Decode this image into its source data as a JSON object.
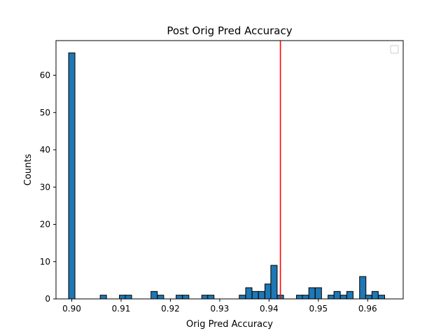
{
  "chart_data": {
    "type": "bar",
    "title": "Post Orig Pred Accuracy",
    "xlabel": "Orig Pred Accuracy",
    "ylabel": "Counts",
    "xlim": [
      0.8968,
      0.9672
    ],
    "ylim": [
      0,
      69.3
    ],
    "xticks": [
      0.9,
      0.91,
      0.92,
      0.93,
      0.94,
      0.95,
      0.96
    ],
    "xtick_labels": [
      "0.90",
      "0.91",
      "0.92",
      "0.93",
      "0.94",
      "0.95",
      "0.96"
    ],
    "yticks": [
      0,
      10,
      20,
      30,
      40,
      50,
      60
    ],
    "ytick_labels": [
      "0",
      "10",
      "20",
      "30",
      "40",
      "50",
      "60"
    ],
    "bin_width": 0.00128,
    "bins": [
      {
        "x": 0.9,
        "count": 66
      },
      {
        "x": 0.9064,
        "count": 1
      },
      {
        "x": 0.9103,
        "count": 1
      },
      {
        "x": 0.9115,
        "count": 1
      },
      {
        "x": 0.9167,
        "count": 2
      },
      {
        "x": 0.918,
        "count": 1
      },
      {
        "x": 0.9218,
        "count": 1
      },
      {
        "x": 0.9231,
        "count": 1
      },
      {
        "x": 0.927,
        "count": 1
      },
      {
        "x": 0.9282,
        "count": 1
      },
      {
        "x": 0.9346,
        "count": 1
      },
      {
        "x": 0.9359,
        "count": 3
      },
      {
        "x": 0.9372,
        "count": 2
      },
      {
        "x": 0.9385,
        "count": 2
      },
      {
        "x": 0.9398,
        "count": 4
      },
      {
        "x": 0.941,
        "count": 9
      },
      {
        "x": 0.9423,
        "count": 1
      },
      {
        "x": 0.9462,
        "count": 1
      },
      {
        "x": 0.9474,
        "count": 1
      },
      {
        "x": 0.9487,
        "count": 3
      },
      {
        "x": 0.95,
        "count": 3
      },
      {
        "x": 0.9526,
        "count": 1
      },
      {
        "x": 0.9538,
        "count": 2
      },
      {
        "x": 0.9551,
        "count": 1
      },
      {
        "x": 0.9564,
        "count": 2
      },
      {
        "x": 0.959,
        "count": 6
      },
      {
        "x": 0.9602,
        "count": 1
      },
      {
        "x": 0.9615,
        "count": 2
      },
      {
        "x": 0.9628,
        "count": 1
      }
    ],
    "reference_line": {
      "x": 0.9423,
      "color": "#ff0000"
    },
    "bar_color": "#1f77b4",
    "legend": {
      "placement": "top-right",
      "entries": []
    },
    "grid": false
  }
}
